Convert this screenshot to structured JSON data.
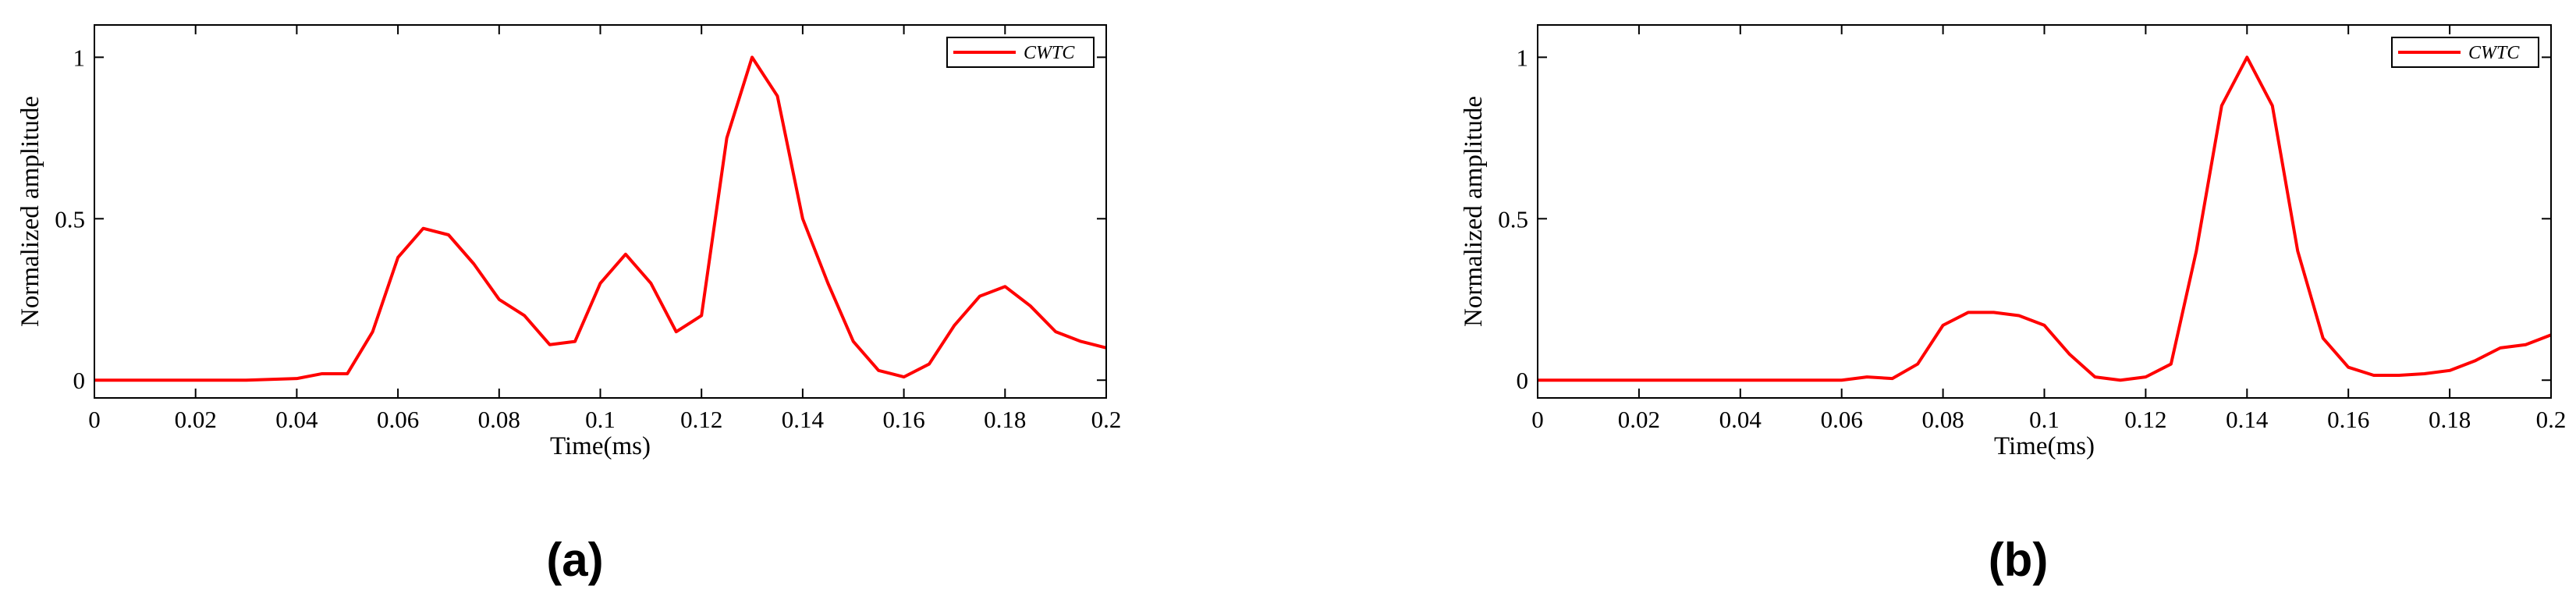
{
  "chart_data": [
    {
      "type": "line",
      "caption": "(a)",
      "xlabel": "Time(ms)",
      "ylabel": "Normalized amplitude",
      "xlim": [
        0,
        0.2
      ],
      "ylim": [
        -0.055,
        1.1
      ],
      "xticks": [
        0,
        0.02,
        0.04,
        0.06,
        0.08,
        0.1,
        0.12,
        0.14,
        0.16,
        0.18,
        0.2
      ],
      "yticks": [
        0,
        0.5,
        1
      ],
      "legend": "northeast",
      "grid": false,
      "x": [
        0,
        0.01,
        0.02,
        0.03,
        0.04,
        0.045,
        0.05,
        0.055,
        0.06,
        0.065,
        0.07,
        0.075,
        0.08,
        0.085,
        0.09,
        0.095,
        0.1,
        0.105,
        0.11,
        0.115,
        0.12,
        0.125,
        0.13,
        0.135,
        0.14,
        0.145,
        0.15,
        0.155,
        0.16,
        0.165,
        0.17,
        0.175,
        0.18,
        0.185,
        0.19,
        0.195,
        0.2
      ],
      "series": [
        {
          "name": "CWTC",
          "color": "#ff0000",
          "values": [
            0,
            0,
            0,
            0,
            0.005,
            0.02,
            0.02,
            0.15,
            0.38,
            0.47,
            0.45,
            0.36,
            0.25,
            0.2,
            0.11,
            0.12,
            0.3,
            0.39,
            0.3,
            0.15,
            0.2,
            0.75,
            1.0,
            0.88,
            0.5,
            0.3,
            0.12,
            0.03,
            0.01,
            0.05,
            0.17,
            0.26,
            0.29,
            0.23,
            0.15,
            0.12,
            0.1
          ]
        }
      ]
    },
    {
      "type": "line",
      "caption": "(b)",
      "xlabel": "Time(ms)",
      "ylabel": "Normalized amplitude",
      "xlim": [
        0,
        0.2
      ],
      "ylim": [
        -0.055,
        1.1
      ],
      "xticks": [
        0,
        0.02,
        0.04,
        0.06,
        0.08,
        0.1,
        0.12,
        0.14,
        0.16,
        0.18,
        0.2
      ],
      "yticks": [
        0,
        0.5,
        1
      ],
      "legend": "northeast",
      "grid": false,
      "x": [
        0,
        0.01,
        0.02,
        0.03,
        0.04,
        0.05,
        0.06,
        0.065,
        0.07,
        0.075,
        0.08,
        0.085,
        0.09,
        0.095,
        0.1,
        0.105,
        0.11,
        0.115,
        0.12,
        0.125,
        0.13,
        0.135,
        0.14,
        0.145,
        0.15,
        0.155,
        0.16,
        0.165,
        0.17,
        0.175,
        0.18,
        0.185,
        0.19,
        0.195,
        0.2
      ],
      "series": [
        {
          "name": "CWTC",
          "color": "#ff0000",
          "values": [
            0,
            0,
            0,
            0,
            0,
            0,
            0,
            0.01,
            0.005,
            0.05,
            0.17,
            0.21,
            0.21,
            0.2,
            0.17,
            0.08,
            0.01,
            0,
            0.01,
            0.05,
            0.4,
            0.85,
            1.0,
            0.85,
            0.4,
            0.13,
            0.04,
            0.015,
            0.015,
            0.02,
            0.03,
            0.06,
            0.1,
            0.11,
            0.14
          ]
        }
      ]
    }
  ]
}
